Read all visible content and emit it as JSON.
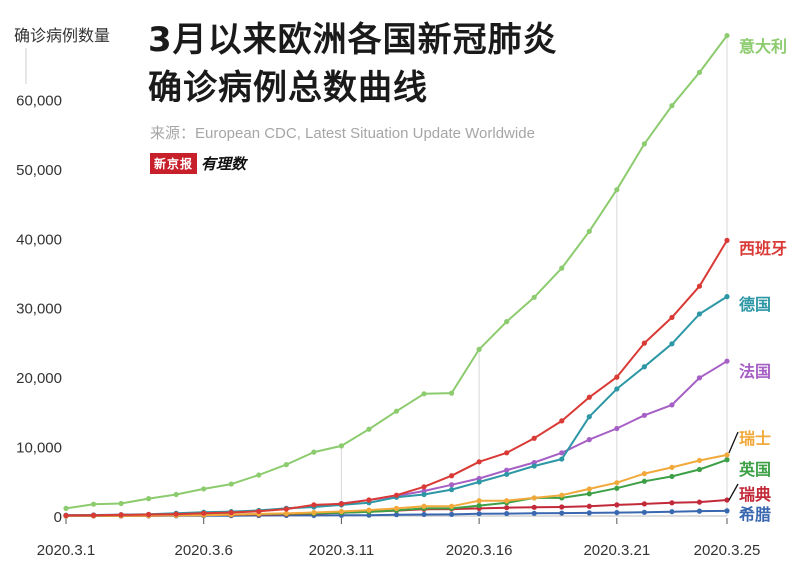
{
  "title_line1": "3月以来欧洲各国新冠肺炎",
  "title_line2": "确诊病例总数曲线",
  "source": "来源：European CDC, Latest Situation Update Worldwide",
  "logo": {
    "box": "新京报",
    "hand": "有理数"
  },
  "chart_data": {
    "type": "line",
    "ylabel": "确诊病例数量",
    "xlabel": "",
    "ylim": [
      0,
      70000
    ],
    "yticks": [
      0,
      10000,
      20000,
      30000,
      40000,
      50000,
      60000
    ],
    "ytick_labels": [
      "0",
      "10,000",
      "20,000",
      "30,000",
      "40,000",
      "50,000",
      "60,000"
    ],
    "x": [
      "2020.3.1",
      "2020.3.2",
      "2020.3.3",
      "2020.3.4",
      "2020.3.5",
      "2020.3.6",
      "2020.3.7",
      "2020.3.8",
      "2020.3.9",
      "2020.3.10",
      "2020.3.11",
      "2020.3.12",
      "2020.3.13",
      "2020.3.14",
      "2020.3.15",
      "2020.3.16",
      "2020.3.17",
      "2020.3.18",
      "2020.3.19",
      "2020.3.20",
      "2020.3.21",
      "2020.3.22",
      "2020.3.23",
      "2020.3.24",
      "2020.3.25"
    ],
    "xtick_labels": [
      "2020.3.1",
      "2020.3.6",
      "2020.3.11",
      "2020.3.16",
      "2020.3.21",
      "2020.3.25"
    ],
    "grid": "vertical lines at 2020.3.11, 2020.3.16, 2020.3.21, 2020.3.25",
    "series": [
      {
        "name": "意大利",
        "color": "#8ccb6e",
        "values": [
          1100,
          1700,
          1800,
          2500,
          3100,
          3900,
          4600,
          5900,
          7400,
          9200,
          10100,
          12500,
          15100,
          17600,
          17700,
          24000,
          28000,
          31500,
          35700,
          41000,
          47000,
          53600,
          59100,
          63900,
          69200
        ]
      },
      {
        "name": "西班牙",
        "color": "#d93a35",
        "values": [
          80,
          110,
          160,
          220,
          280,
          400,
          500,
          670,
          1000,
          1600,
          1750,
          2300,
          3000,
          4200,
          5800,
          7800,
          9100,
          11200,
          13700,
          17100,
          20000,
          24900,
          28600,
          33100,
          39700
        ]
      },
      {
        "name": "德国",
        "color": "#2d97a6",
        "values": [
          120,
          150,
          190,
          240,
          400,
          540,
          640,
          800,
          1100,
          1300,
          1600,
          1900,
          2700,
          3100,
          3800,
          4900,
          6000,
          7200,
          8200,
          14300,
          18300,
          21500,
          24800,
          29100,
          31600
        ]
      },
      {
        "name": "法国",
        "color": "#a65fc4",
        "values": [
          100,
          130,
          190,
          210,
          280,
          420,
          600,
          700,
          1100,
          1400,
          1800,
          2300,
          2900,
          3600,
          4500,
          5400,
          6600,
          7700,
          9100,
          11000,
          12600,
          14500,
          16000,
          19900,
          22300
        ]
      },
      {
        "name": "瑞士",
        "color": "#f2a93b",
        "values": [
          20,
          30,
          40,
          50,
          80,
          120,
          200,
          300,
          370,
          500,
          650,
          850,
          1100,
          1400,
          1400,
          2200,
          2200,
          2600,
          3000,
          3900,
          4800,
          6100,
          7000,
          8000,
          8800
        ]
      },
      {
        "name": "英国",
        "color": "#3da046",
        "values": [
          30,
          40,
          50,
          80,
          110,
          160,
          210,
          270,
          320,
          380,
          460,
          590,
          800,
          1100,
          1100,
          1500,
          1900,
          2600,
          2600,
          3200,
          4000,
          5000,
          5700,
          6700,
          8100
        ]
      },
      {
        "name": "瑞典",
        "color": "#c22a3a",
        "values": [
          10,
          15,
          20,
          50,
          90,
          140,
          160,
          200,
          250,
          330,
          460,
          620,
          780,
          960,
          1000,
          1100,
          1200,
          1250,
          1300,
          1400,
          1600,
          1750,
          1900,
          2000,
          2300
        ]
      },
      {
        "name": "希腊",
        "color": "#3a68b0",
        "values": [
          5,
          7,
          10,
          10,
          30,
          40,
          50,
          70,
          80,
          90,
          100,
          120,
          190,
          220,
          230,
          330,
          350,
          390,
          420,
          450,
          490,
          530,
          620,
          700,
          740
        ]
      }
    ]
  }
}
